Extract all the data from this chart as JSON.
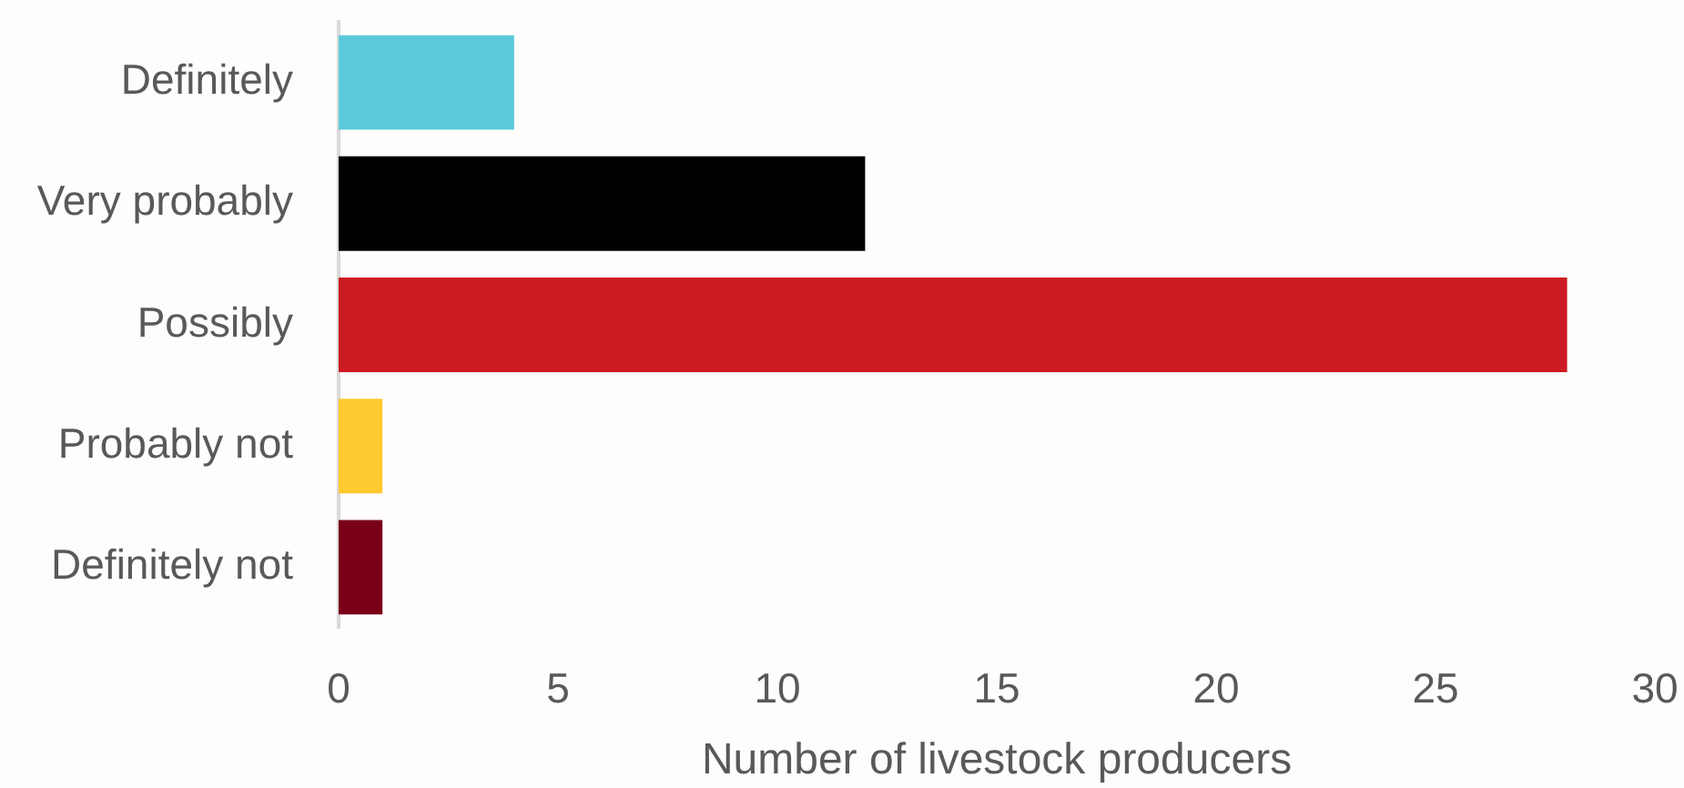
{
  "chart_data": {
    "type": "bar",
    "orientation": "horizontal",
    "categories": [
      "Definitely",
      "Very probably",
      "Possibly",
      "Probably not",
      "Definitely not"
    ],
    "values": [
      4,
      12,
      28,
      1,
      1
    ],
    "colors": [
      "#5bc8dc",
      "#000000",
      "#cc1b22",
      "#ffca30",
      "#7a0019"
    ],
    "xlabel": "Number of livestock producers",
    "xlim": [
      0,
      30
    ],
    "xticks": [
      0,
      5,
      10,
      15,
      20,
      25,
      30
    ],
    "grid": false
  }
}
